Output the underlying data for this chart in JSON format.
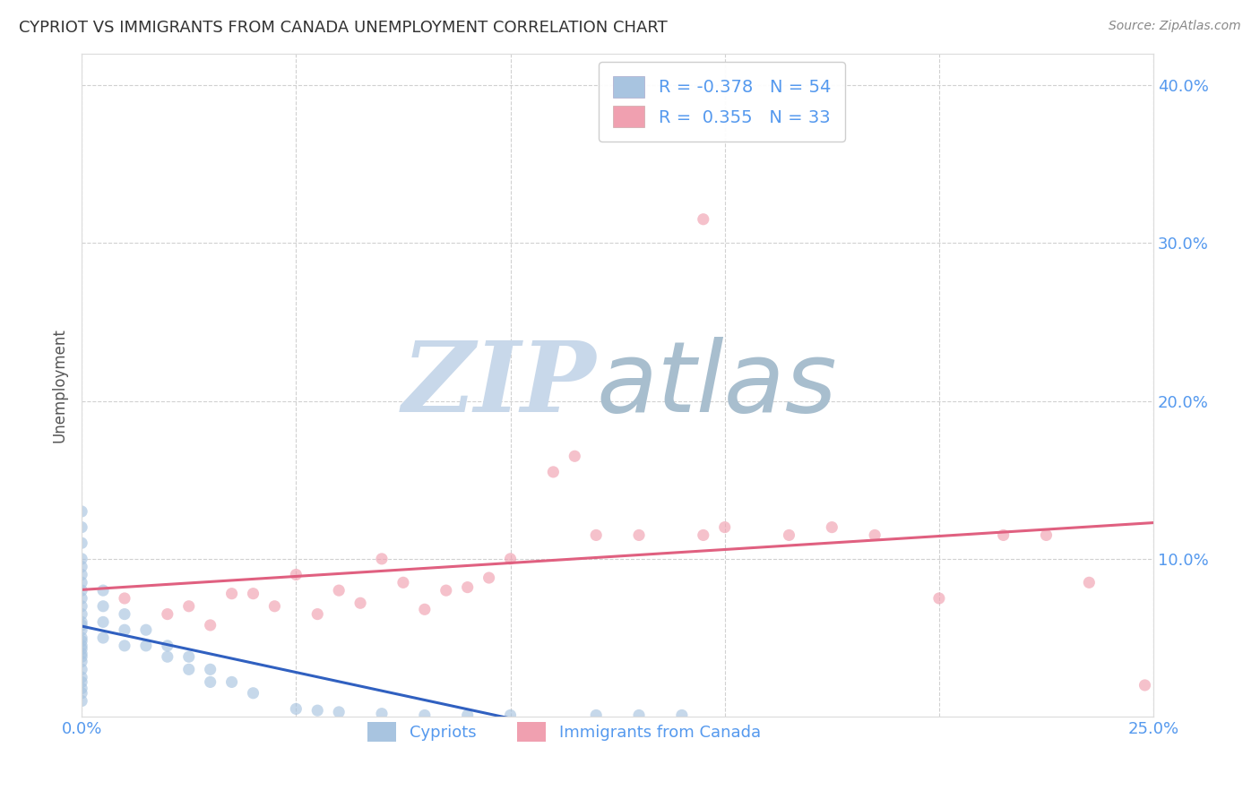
{
  "title": "CYPRIOT VS IMMIGRANTS FROM CANADA UNEMPLOYMENT CORRELATION CHART",
  "source": "Source: ZipAtlas.com",
  "ylabel": "Unemployment",
  "xlim": [
    0.0,
    0.25
  ],
  "ylim": [
    0.0,
    0.42
  ],
  "xticks": [
    0.0,
    0.05,
    0.1,
    0.15,
    0.2,
    0.25
  ],
  "yticks": [
    0.1,
    0.2,
    0.3,
    0.4
  ],
  "right_ytick_labels": [
    "10.0%",
    "20.0%",
    "30.0%",
    "40.0%"
  ],
  "xtick_labels": [
    "0.0%",
    "",
    "",
    "",
    "",
    "25.0%"
  ],
  "grid_color": "#cccccc",
  "background_color": "#ffffff",
  "legend_R_blue": "-0.378",
  "legend_N_blue": "54",
  "legend_R_pink": "0.355",
  "legend_N_pink": "33",
  "legend_label_blue": "Cypriots",
  "legend_label_pink": "Immigrants from Canada",
  "dot_color_blue": "#a8c4e0",
  "dot_color_pink": "#f0a0b0",
  "line_color_blue": "#3060c0",
  "line_color_pink": "#e06080",
  "dot_alpha": 0.65,
  "dot_size": 90,
  "tick_color": "#5599ee",
  "cypriot_x": [
    0.0,
    0.0,
    0.0,
    0.0,
    0.0,
    0.0,
    0.0,
    0.0,
    0.0,
    0.0,
    0.0,
    0.0,
    0.0,
    0.0,
    0.0,
    0.0,
    0.0,
    0.0,
    0.0,
    0.0,
    0.0,
    0.0,
    0.0,
    0.0,
    0.0,
    0.0,
    0.0,
    0.005,
    0.005,
    0.005,
    0.005,
    0.01,
    0.01,
    0.01,
    0.015,
    0.015,
    0.02,
    0.02,
    0.025,
    0.025,
    0.03,
    0.03,
    0.035,
    0.04,
    0.05,
    0.055,
    0.06,
    0.07,
    0.08,
    0.09,
    0.1,
    0.12,
    0.13,
    0.14
  ],
  "cypriot_y": [
    0.13,
    0.12,
    0.11,
    0.1,
    0.095,
    0.09,
    0.085,
    0.08,
    0.075,
    0.07,
    0.065,
    0.06,
    0.058,
    0.055,
    0.05,
    0.048,
    0.045,
    0.043,
    0.04,
    0.038,
    0.035,
    0.03,
    0.025,
    0.022,
    0.018,
    0.015,
    0.01,
    0.08,
    0.07,
    0.06,
    0.05,
    0.065,
    0.055,
    0.045,
    0.055,
    0.045,
    0.045,
    0.038,
    0.038,
    0.03,
    0.03,
    0.022,
    0.022,
    0.015,
    0.005,
    0.004,
    0.003,
    0.002,
    0.001,
    0.001,
    0.001,
    0.001,
    0.001,
    0.001
  ],
  "canada_x": [
    0.01,
    0.02,
    0.025,
    0.03,
    0.035,
    0.04,
    0.045,
    0.05,
    0.055,
    0.06,
    0.065,
    0.07,
    0.075,
    0.08,
    0.085,
    0.09,
    0.095,
    0.1,
    0.11,
    0.115,
    0.12,
    0.13,
    0.145,
    0.15,
    0.165,
    0.175,
    0.185,
    0.2,
    0.215,
    0.225,
    0.235,
    0.248,
    0.145
  ],
  "canada_y": [
    0.075,
    0.065,
    0.07,
    0.058,
    0.078,
    0.078,
    0.07,
    0.09,
    0.065,
    0.08,
    0.072,
    0.1,
    0.085,
    0.068,
    0.08,
    0.082,
    0.088,
    0.1,
    0.155,
    0.165,
    0.115,
    0.115,
    0.115,
    0.12,
    0.115,
    0.12,
    0.115,
    0.075,
    0.115,
    0.115,
    0.085,
    0.02,
    0.315
  ]
}
